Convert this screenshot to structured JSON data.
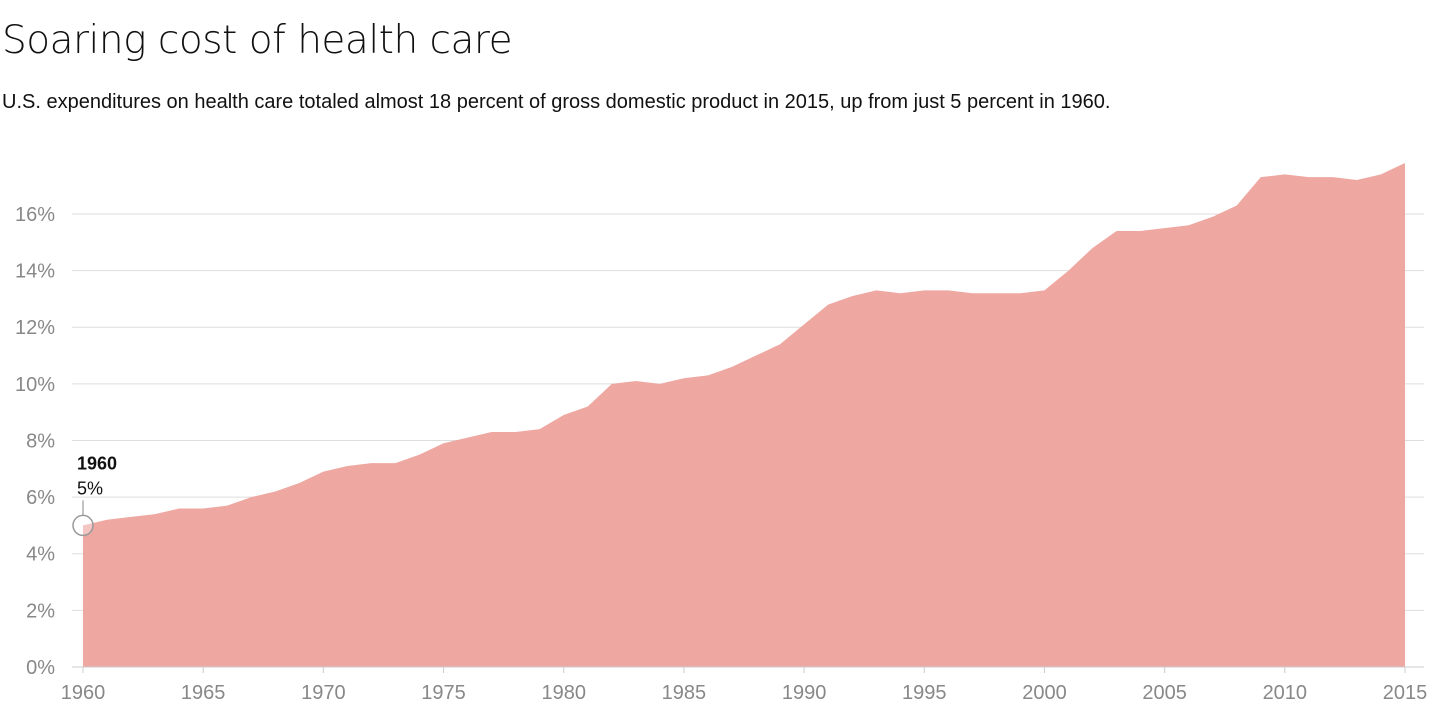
{
  "header": {
    "title": "Soaring cost of health care",
    "subtitle": "U.S. expenditures on health care totaled almost 18 percent of gross domestic product in 2015, up from just 5 percent in 1960."
  },
  "annotation": {
    "year": "1960",
    "value": "5%",
    "x": 1960,
    "y": 5
  },
  "chart_data": {
    "type": "area",
    "title": "Soaring cost of health care",
    "subtitle": "U.S. expenditures on health care totaled almost 18 percent of gross domestic product in 2015, up from just 5 percent in 1960.",
    "xlabel": "",
    "ylabel": "",
    "xlim": [
      1960,
      2015
    ],
    "ylim": [
      0,
      17.8
    ],
    "grid": true,
    "x_ticks": [
      1960,
      1965,
      1970,
      1975,
      1980,
      1985,
      1990,
      1995,
      2000,
      2005,
      2010,
      2015
    ],
    "x_tick_labels": [
      "1960",
      "1965",
      "1970",
      "1975",
      "1980",
      "1985",
      "1990",
      "1995",
      "2000",
      "2005",
      "2010",
      "2015"
    ],
    "y_ticks": [
      0,
      2,
      4,
      6,
      8,
      10,
      12,
      14,
      16
    ],
    "y_tick_labels": [
      "0%",
      "2%",
      "4%",
      "6%",
      "8%",
      "10%",
      "12%",
      "14%",
      "16%"
    ],
    "fill_color": "#eea7a1",
    "x": [
      1960,
      1961,
      1962,
      1963,
      1964,
      1965,
      1966,
      1967,
      1968,
      1969,
      1970,
      1971,
      1972,
      1973,
      1974,
      1975,
      1976,
      1977,
      1978,
      1979,
      1980,
      1981,
      1982,
      1983,
      1984,
      1985,
      1986,
      1987,
      1988,
      1989,
      1990,
      1991,
      1992,
      1993,
      1994,
      1995,
      1996,
      1997,
      1998,
      1999,
      2000,
      2001,
      2002,
      2003,
      2004,
      2005,
      2006,
      2007,
      2008,
      2009,
      2010,
      2011,
      2012,
      2013,
      2014,
      2015
    ],
    "y": [
      5.0,
      5.2,
      5.3,
      5.4,
      5.6,
      5.6,
      5.7,
      6.0,
      6.2,
      6.5,
      6.9,
      7.1,
      7.2,
      7.2,
      7.5,
      7.9,
      8.1,
      8.3,
      8.3,
      8.4,
      8.9,
      9.2,
      10.0,
      10.1,
      10.0,
      10.2,
      10.3,
      10.6,
      11.0,
      11.4,
      12.1,
      12.8,
      13.1,
      13.3,
      13.2,
      13.3,
      13.3,
      13.2,
      13.2,
      13.2,
      13.3,
      14.0,
      14.8,
      15.4,
      15.4,
      15.5,
      15.6,
      15.9,
      16.3,
      17.3,
      17.4,
      17.3,
      17.3,
      17.2,
      17.4,
      17.8
    ]
  }
}
